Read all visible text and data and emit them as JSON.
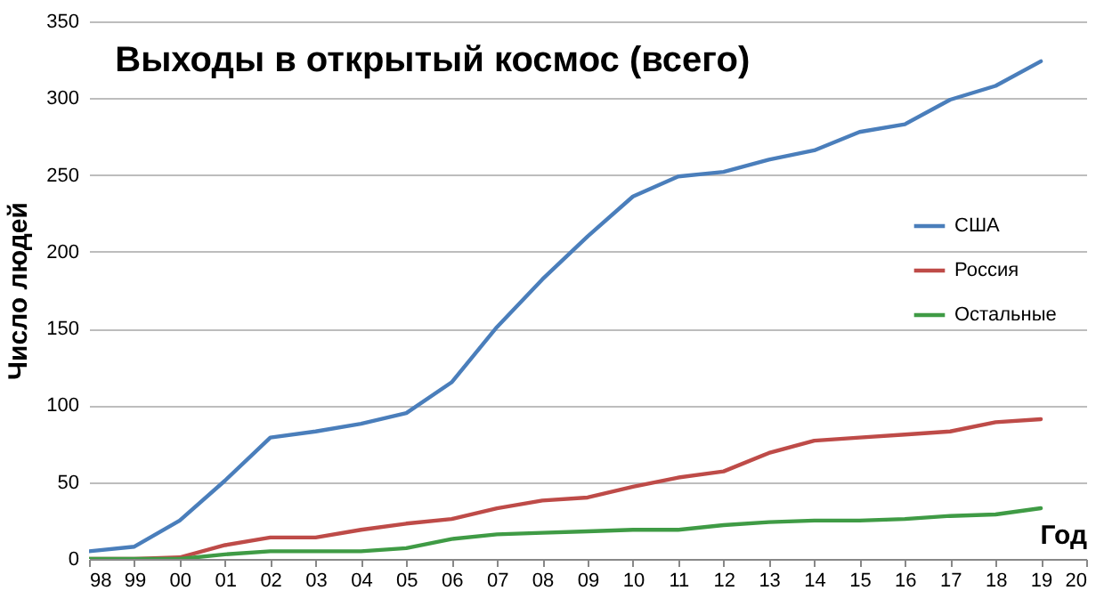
{
  "chart_data": {
    "type": "line",
    "title": "Выходы в открытый космос (всего)",
    "xlabel": "Год",
    "ylabel": "Число людей",
    "x": [
      1998,
      1999,
      2000,
      2001,
      2002,
      2003,
      2004,
      2005,
      2006,
      2007,
      2008,
      2009,
      2010,
      2011,
      2012,
      2013,
      2014,
      2015,
      2016,
      2017,
      2018,
      2019
    ],
    "series": [
      {
        "name": "США",
        "color": "#4a7ebb",
        "values": [
          5,
          8,
          25,
          51,
          79,
          83,
          88,
          95,
          115,
          151,
          182,
          210,
          236,
          249,
          252,
          260,
          266,
          278,
          283,
          299,
          308,
          324
        ]
      },
      {
        "name": "Россия",
        "color": "#be4b48",
        "values": [
          0,
          0,
          1,
          9,
          14,
          14,
          19,
          23,
          26,
          33,
          38,
          40,
          47,
          53,
          57,
          69,
          77,
          79,
          81,
          83,
          89,
          91
        ]
      },
      {
        "name": "Остальные",
        "color": "#3f9b45",
        "values": [
          0,
          0,
          0,
          3,
          5,
          5,
          5,
          7,
          13,
          16,
          17,
          18,
          19,
          19,
          22,
          24,
          25,
          25,
          26,
          28,
          29,
          33
        ]
      }
    ],
    "xlim": [
      1998,
      2020
    ],
    "xticks": [
      {
        "value": 1998,
        "label": "98"
      },
      {
        "value": 1999,
        "label": "99"
      },
      {
        "value": 2000,
        "label": "00"
      },
      {
        "value": 2001,
        "label": "01"
      },
      {
        "value": 2002,
        "label": "02"
      },
      {
        "value": 2003,
        "label": "03"
      },
      {
        "value": 2004,
        "label": "04"
      },
      {
        "value": 2005,
        "label": "05"
      },
      {
        "value": 2006,
        "label": "06"
      },
      {
        "value": 2007,
        "label": "07"
      },
      {
        "value": 2008,
        "label": "08"
      },
      {
        "value": 2009,
        "label": "09"
      },
      {
        "value": 2010,
        "label": "10"
      },
      {
        "value": 2011,
        "label": "11"
      },
      {
        "value": 2012,
        "label": "12"
      },
      {
        "value": 2013,
        "label": "13"
      },
      {
        "value": 2014,
        "label": "14"
      },
      {
        "value": 2015,
        "label": "15"
      },
      {
        "value": 2016,
        "label": "16"
      },
      {
        "value": 2017,
        "label": "17"
      },
      {
        "value": 2018,
        "label": "18"
      },
      {
        "value": 2019,
        "label": "19"
      },
      {
        "value": 2020,
        "label": "20"
      }
    ],
    "ylim": [
      0,
      350
    ],
    "yticks": [
      0,
      50,
      100,
      150,
      200,
      250,
      300,
      350
    ],
    "grid": "y",
    "legend": "right",
    "marker": "none",
    "line_style": "solid"
  }
}
